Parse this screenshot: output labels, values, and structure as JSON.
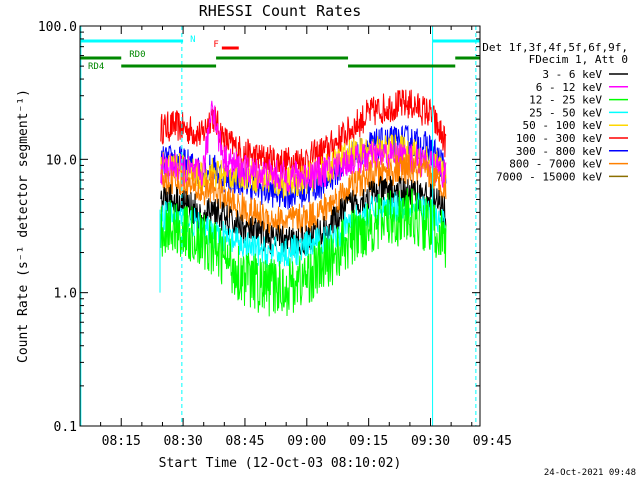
{
  "chart_data": {
    "type": "line",
    "title": "RHESSI Count Rates",
    "xlabel": "Start Time (12-Oct-03 08:10:02)",
    "ylabel": "Count Rate (s⁻¹ detector segment⁻¹)",
    "yscale": "log",
    "ylim": [
      0.1,
      100.0
    ],
    "xlim_minutes": [
      5,
      102
    ],
    "x_ticks": [
      {
        "label": "08:15",
        "minute": 15
      },
      {
        "label": "08:30",
        "minute": 30
      },
      {
        "label": "08:45",
        "minute": 45
      },
      {
        "label": "09:00",
        "minute": 60
      },
      {
        "label": "09:15",
        "minute": 75
      },
      {
        "label": "09:30",
        "minute": 90
      },
      {
        "label": "09:45",
        "minute": 105
      }
    ],
    "y_ticks": [
      {
        "label": "0.1",
        "value": 0.1
      },
      {
        "label": "1.0",
        "value": 1.0
      },
      {
        "label": "10.0",
        "value": 10.0
      },
      {
        "label": "100.0",
        "value": 100.0
      }
    ],
    "legend": {
      "placement": "right",
      "header": [
        "Det 1f,3f,4f,5f,6f,9f,",
        "FDecim 1, Att 0"
      ],
      "entries": [
        {
          "name": "3 - 6 keV",
          "color": "#000000"
        },
        {
          "name": "6 - 12 keV",
          "color": "#ff00ff"
        },
        {
          "name": "12 - 25 keV",
          "color": "#00ff00"
        },
        {
          "name": "25 - 50 keV",
          "color": "#00ffff"
        },
        {
          "name": "50 - 100 keV",
          "color": "#ffd700"
        },
        {
          "name": "100 - 300 keV",
          "color": "#ff0000"
        },
        {
          "name": "300 - 800 keV",
          "color": "#0000ff"
        },
        {
          "name": "800 - 7000 keV",
          "color": "#ff8000"
        },
        {
          "name": "7000 - 15000 keV",
          "color": "#8b6f00"
        }
      ]
    },
    "series": [
      {
        "name": "100 - 300 keV",
        "color": "#ff0000",
        "x": [
          24.6,
          28,
          33,
          34.6,
          37,
          40,
          45,
          50,
          55,
          60,
          65,
          70,
          75,
          80,
          85,
          90,
          93.8
        ],
        "y": [
          17,
          18,
          16,
          15,
          22,
          14,
          11,
          10,
          9.5,
          10,
          12,
          16,
          22,
          25,
          26,
          22,
          13
        ]
      },
      {
        "name": "300 - 800 keV",
        "color": "#0000ff",
        "x": [
          24.6,
          28,
          33,
          34.6,
          37,
          40,
          45,
          50,
          55,
          60,
          65,
          70,
          75,
          80,
          85,
          90,
          93.8
        ],
        "y": [
          9.5,
          10,
          8.6,
          7.8,
          8.6,
          7.4,
          6.8,
          5.8,
          5.5,
          5.8,
          7.0,
          10,
          12.5,
          13.5,
          13.8,
          12,
          8.5
        ]
      },
      {
        "name": "50 - 100 keV",
        "color": "#ffd700",
        "x": [
          24.6,
          28,
          33,
          34.6,
          37,
          40,
          45,
          50,
          55,
          60,
          65,
          70,
          75,
          80,
          85,
          90,
          93.8
        ],
        "y": [
          8.6,
          8.8,
          7.8,
          7.2,
          8.0,
          7.6,
          7.8,
          7.0,
          6.6,
          7.2,
          8.4,
          10.8,
          11.5,
          12,
          11.4,
          10,
          7.6
        ]
      },
      {
        "name": "6 - 12 keV",
        "color": "#ff00ff",
        "x": [
          24.6,
          28,
          33,
          34.6,
          36,
          37,
          38.5,
          40,
          45,
          50,
          55,
          60,
          65,
          70,
          75,
          80,
          85,
          90,
          93.8
        ],
        "y": [
          8.4,
          8.6,
          7.8,
          7.5,
          14,
          28,
          15,
          10,
          8.2,
          7.8,
          7.4,
          7.6,
          8.2,
          9.6,
          10.4,
          10.6,
          10.2,
          9.2,
          7.4
        ]
      },
      {
        "name": "800 - 7000 keV",
        "color": "#ff8000",
        "x": [
          24.6,
          28,
          33,
          34.6,
          37,
          40,
          45,
          50,
          55,
          60,
          65,
          70,
          75,
          80,
          85,
          90,
          93.8
        ],
        "y": [
          6.6,
          6.8,
          6.0,
          5.5,
          6.4,
          5.0,
          4.2,
          3.6,
          3.4,
          3.6,
          4.4,
          6.0,
          7.4,
          8.2,
          8.4,
          7.6,
          6.0
        ]
      },
      {
        "name": "3 - 6 keV",
        "color": "#000000",
        "x": [
          24.6,
          28,
          33,
          34.6,
          37,
          40,
          45,
          50,
          55,
          60,
          65,
          70,
          75,
          80,
          85,
          90,
          93.8
        ],
        "y": [
          5.2,
          5.0,
          4.2,
          3.2,
          4.4,
          3.6,
          3.0,
          2.6,
          2.4,
          2.5,
          3.0,
          4.4,
          5.4,
          5.8,
          5.6,
          5.2,
          4.0
        ]
      },
      {
        "name": "25 - 50 keV",
        "color": "#00ffff",
        "x": [
          24.6,
          28,
          33,
          34.6,
          37,
          40,
          45,
          50,
          55,
          60,
          65,
          70,
          75,
          80,
          85,
          90,
          93.8
        ],
        "y": [
          3.7,
          3.8,
          3.3,
          2.8,
          2.9,
          2.6,
          2.2,
          2.0,
          2.0,
          2.2,
          2.5,
          3.2,
          4.0,
          4.4,
          4.5,
          4.0,
          3.0
        ]
      },
      {
        "name": "12 - 25 keV",
        "color": "#00ff00",
        "x": [
          24.6,
          28,
          33,
          34.6,
          37,
          40,
          45,
          50,
          55,
          60,
          65,
          70,
          75,
          80,
          85,
          90,
          93.8
        ],
        "y": [
          3.0,
          3.1,
          2.6,
          2.4,
          2.2,
          1.8,
          1.3,
          1.1,
          1.1,
          1.3,
          1.7,
          2.4,
          3.2,
          3.6,
          3.7,
          3.2,
          2.3
        ]
      }
    ],
    "time_bars": [
      {
        "label": "N",
        "color": "#00ffff",
        "row": 0,
        "start": 5,
        "end": 30
      },
      {
        "label": "",
        "color": "#00ffff",
        "row": 0,
        "start": 90.5,
        "end": 102
      },
      {
        "label": "F",
        "color": "#ff0000",
        "row": 1,
        "start": 39.4,
        "end": 43.5
      },
      {
        "label": "RD0",
        "color": "#008800",
        "row": 2,
        "start": 5,
        "end": 15,
        "label_at_start": true
      },
      {
        "label": "",
        "color": "#008800",
        "row": 2,
        "start": 38,
        "end": 70
      },
      {
        "label": "",
        "color": "#008800",
        "row": 2,
        "start": 96,
        "end": 102
      },
      {
        "label": "RD4",
        "color": "#008800",
        "row": 3,
        "start": 15,
        "end": 38,
        "label_at_start": true
      },
      {
        "label": "",
        "color": "#008800",
        "row": 3,
        "start": 70,
        "end": 96
      }
    ],
    "vertical_markers": [
      {
        "minute": 5.2,
        "color": "#00ffff",
        "style": "solid"
      },
      {
        "minute": 29.7,
        "color": "#00ffff",
        "style": "dashed"
      },
      {
        "minute": 90.5,
        "color": "#00ffff",
        "style": "solid"
      },
      {
        "minute": 101,
        "color": "#00ffff",
        "style": "dashed"
      }
    ]
  },
  "footer": {
    "timestamp": "24-Oct-2021 09:48"
  }
}
